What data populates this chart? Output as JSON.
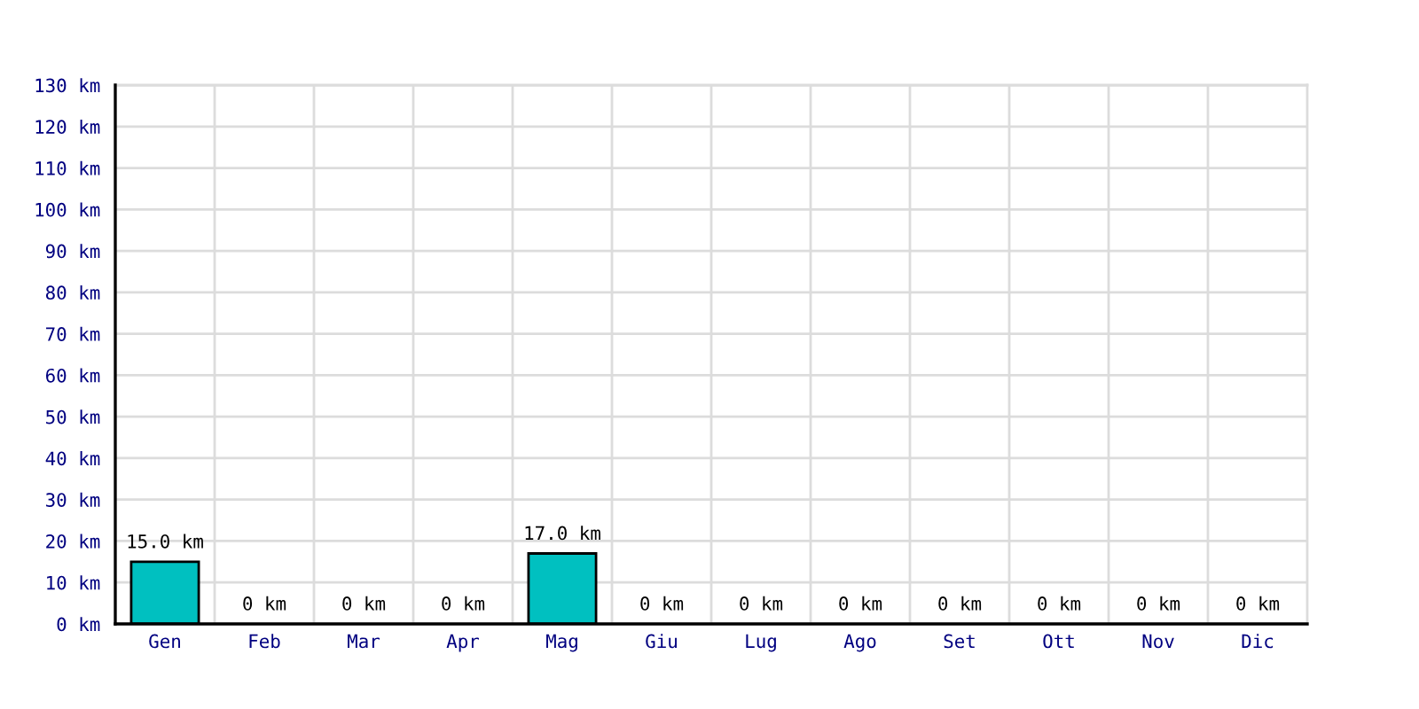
{
  "chart_data": {
    "type": "bar",
    "categories": [
      "Gen",
      "Feb",
      "Mar",
      "Apr",
      "Mag",
      "Giu",
      "Lug",
      "Ago",
      "Set",
      "Ott",
      "Nov",
      "Dic"
    ],
    "values": [
      15,
      0,
      0,
      0,
      17,
      0,
      0,
      0,
      0,
      0,
      0,
      0
    ],
    "value_labels": [
      "15.0 km",
      "0 km",
      "0 km",
      "0 km",
      "17.0 km",
      "0 km",
      "0 km",
      "0 km",
      "0 km",
      "0 km",
      "0 km",
      "0 km"
    ],
    "color": "#00c0c0",
    "ylim": [
      0,
      130
    ],
    "yticks": [
      {
        "value": 0,
        "label": "0 km"
      },
      {
        "value": 10,
        "label": "10 km"
      },
      {
        "value": 20,
        "label": "20 km"
      },
      {
        "value": 30,
        "label": "30 km"
      },
      {
        "value": 40,
        "label": "40 km"
      },
      {
        "value": 50,
        "label": "50 km"
      },
      {
        "value": 60,
        "label": "60 km"
      },
      {
        "value": 70,
        "label": "70 km"
      },
      {
        "value": 80,
        "label": "80 km"
      },
      {
        "value": 90,
        "label": "90 km"
      },
      {
        "value": 100,
        "label": "100 km"
      },
      {
        "value": 110,
        "label": "110 km"
      },
      {
        "value": 120,
        "label": "120 km"
      },
      {
        "value": 130,
        "label": "130 km"
      }
    ],
    "grid": true
  }
}
